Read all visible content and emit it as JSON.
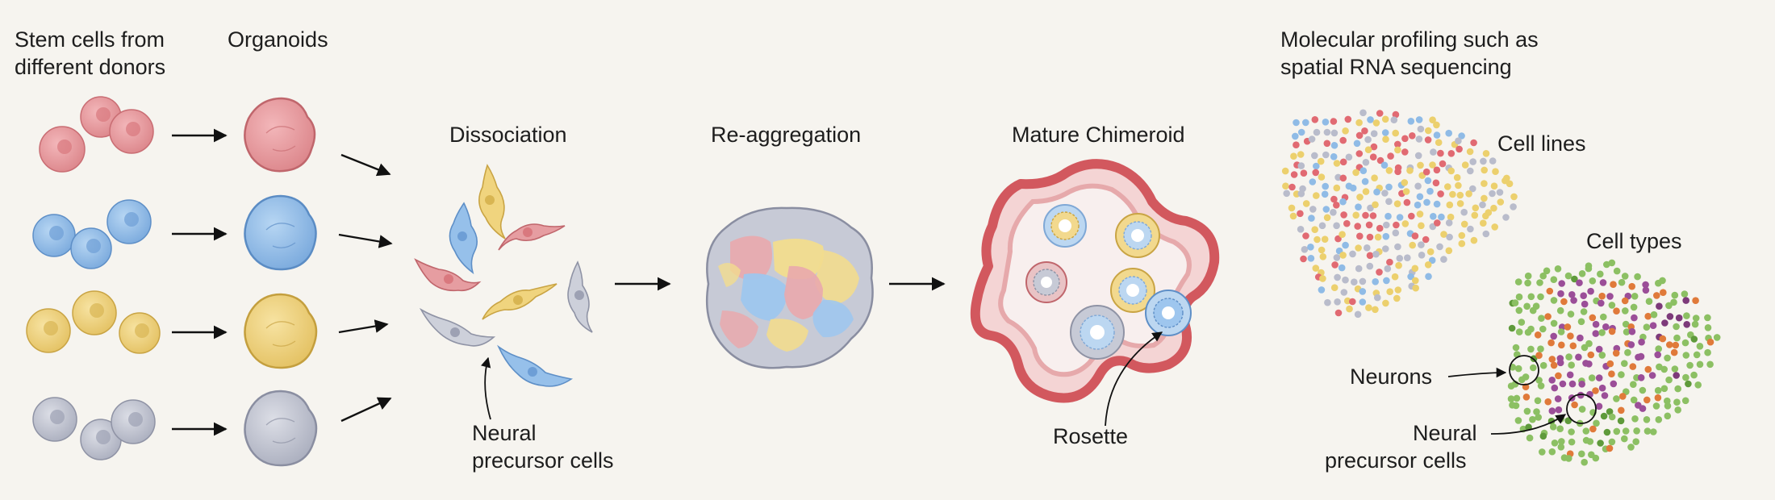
{
  "labels": {
    "stem_cells_line1": "Stem cells from",
    "stem_cells_line2": "different donors",
    "organoids": "Organoids",
    "dissociation": "Dissociation",
    "reaggregation": "Re-aggregation",
    "mature": "Mature Chimeroid",
    "profiling_line1": "Molecular profiling such as",
    "profiling_line2": "spatial RNA sequencing",
    "cell_lines": "Cell lines",
    "cell_types": "Cell types",
    "neural_precursor_line1": "Neural",
    "neural_precursor_line2": "precursor cells",
    "rosette": "Rosette",
    "neurons": "Neurons",
    "npc_right_line1": "Neural",
    "npc_right_line2": "precursor cells"
  },
  "colors": {
    "background": "#f6f4ef",
    "donor_red": "#e39a9e",
    "donor_blue": "#8fbbe6",
    "donor_yellow": "#ecd27e",
    "donor_gray": "#c3c6d2",
    "tissue_red": "#d2585e",
    "neuron_green": "#8cc063",
    "npc_orange": "#e07a3a",
    "npc_purple": "#9b4e98",
    "text": "#1d1d1d"
  }
}
